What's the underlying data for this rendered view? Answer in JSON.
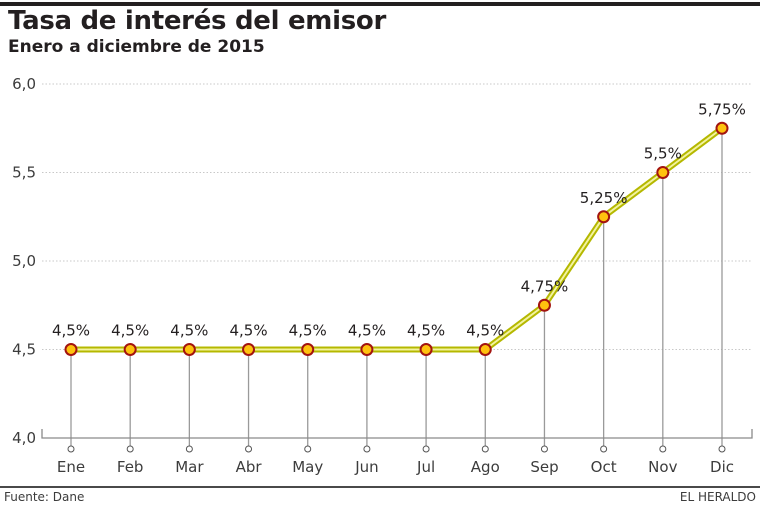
{
  "header": {
    "title": "Tasa de interés del emisor",
    "subtitle": "Enero a diciembre de 2015"
  },
  "footer": {
    "source": "Fuente: Dane",
    "brand": "EL HERALDO"
  },
  "colors": {
    "line_outer": "#b5b800",
    "line_inner": "#f3f3a0",
    "marker_fill": "#ffc20e",
    "marker_stroke": "#a3140f",
    "stem": "#9a9a9a",
    "grid": "#c8c8c8",
    "axis": "#8a8a8a"
  },
  "chart_data": {
    "type": "line",
    "title": "Tasa de interés del emisor",
    "subtitle": "Enero a diciembre de 2015",
    "xlabel": "",
    "ylabel": "",
    "categories": [
      "Ene",
      "Feb",
      "Mar",
      "Abr",
      "May",
      "Jun",
      "Jul",
      "Ago",
      "Sep",
      "Oct",
      "Nov",
      "Dic"
    ],
    "series": [
      {
        "name": "Tasa de interés del emisor",
        "values": [
          4.5,
          4.5,
          4.5,
          4.5,
          4.5,
          4.5,
          4.5,
          4.5,
          4.75,
          5.25,
          5.5,
          5.75
        ],
        "labels": [
          "4,5%",
          "4,5%",
          "4,5%",
          "4,5%",
          "4,5%",
          "4,5%",
          "4,5%",
          "4,5%",
          "4,75%",
          "5,25%",
          "5,5%",
          "5,75%"
        ]
      }
    ],
    "ylim": [
      4.0,
      6.0
    ],
    "yticks": [
      4.0,
      4.5,
      5.0,
      5.5,
      6.0
    ],
    "ytick_labels": [
      "4,0",
      "4,5",
      "5,0",
      "5,5",
      "6,0"
    ],
    "grid": true,
    "legend": "none"
  }
}
